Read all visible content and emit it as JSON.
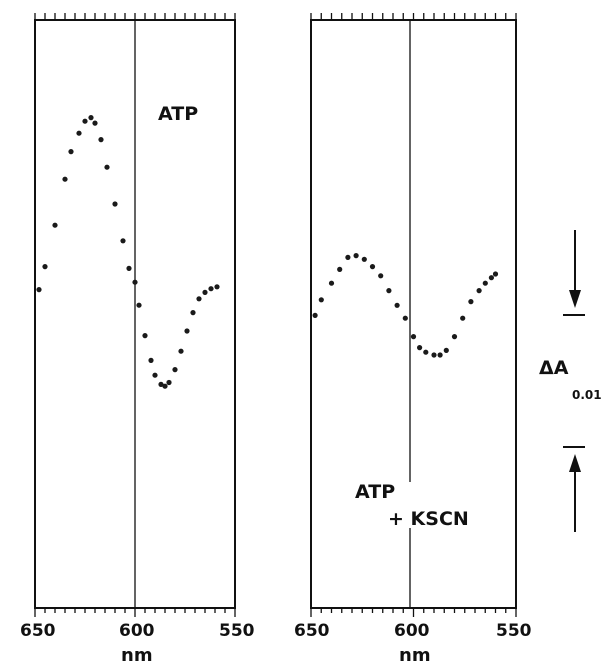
{
  "chart_data": [
    {
      "type": "scatter",
      "panel": "left",
      "label_lines": [
        "ATP"
      ],
      "x_label": "nm",
      "x_ticks": [
        650,
        600,
        550
      ],
      "x_range": [
        650,
        550
      ],
      "x_reversed": true,
      "points": [
        [
          648,
          -0.0005
        ],
        [
          645,
          0.002
        ],
        [
          640,
          0.0065
        ],
        [
          635,
          0.0115
        ],
        [
          632,
          0.0145
        ],
        [
          628,
          0.0165
        ],
        [
          625,
          0.0178
        ],
        [
          622,
          0.0182
        ],
        [
          620,
          0.0176
        ],
        [
          617,
          0.0158
        ],
        [
          614,
          0.0128
        ],
        [
          610,
          0.0088
        ],
        [
          606,
          0.0048
        ],
        [
          603,
          0.0018
        ],
        [
          600,
          0.0003
        ],
        [
          598,
          -0.0022
        ],
        [
          595,
          -0.0055
        ],
        [
          592,
          -0.0082
        ],
        [
          590,
          -0.0098
        ],
        [
          587,
          -0.0108
        ],
        [
          585,
          -0.011
        ],
        [
          583,
          -0.0106
        ],
        [
          580,
          -0.0092
        ],
        [
          577,
          -0.0072
        ],
        [
          574,
          -0.005
        ],
        [
          571,
          -0.003
        ],
        [
          568,
          -0.0015
        ],
        [
          565,
          -0.0008
        ],
        [
          562,
          -0.0004
        ],
        [
          559,
          -0.0002
        ]
      ]
    },
    {
      "type": "scatter",
      "panel": "right",
      "label_lines": [
        "ATP",
        "+ KSCN"
      ],
      "x_label": "nm",
      "x_ticks": [
        650,
        600,
        550
      ],
      "x_range": [
        650,
        550
      ],
      "x_reversed": true,
      "points": [
        [
          648,
          0.0005
        ],
        [
          645,
          0.0022
        ],
        [
          640,
          0.004
        ],
        [
          636,
          0.0055
        ],
        [
          632,
          0.0068
        ],
        [
          628,
          0.007
        ],
        [
          624,
          0.0066
        ],
        [
          620,
          0.0058
        ],
        [
          616,
          0.0048
        ],
        [
          612,
          0.0032
        ],
        [
          608,
          0.0016
        ],
        [
          604,
          0.0002
        ],
        [
          600,
          -0.0018
        ],
        [
          597,
          -0.003
        ],
        [
          594,
          -0.0035
        ],
        [
          590,
          -0.0038
        ],
        [
          587,
          -0.0038
        ],
        [
          584,
          -0.0033
        ],
        [
          580,
          -0.0018
        ],
        [
          576,
          0.0002
        ],
        [
          572,
          0.002
        ],
        [
          568,
          0.0032
        ],
        [
          565,
          0.004
        ],
        [
          562,
          0.0046
        ],
        [
          560,
          0.005
        ]
      ]
    }
  ],
  "scale_bar": {
    "symbol": "ΔA",
    "value_label": "0.01"
  }
}
